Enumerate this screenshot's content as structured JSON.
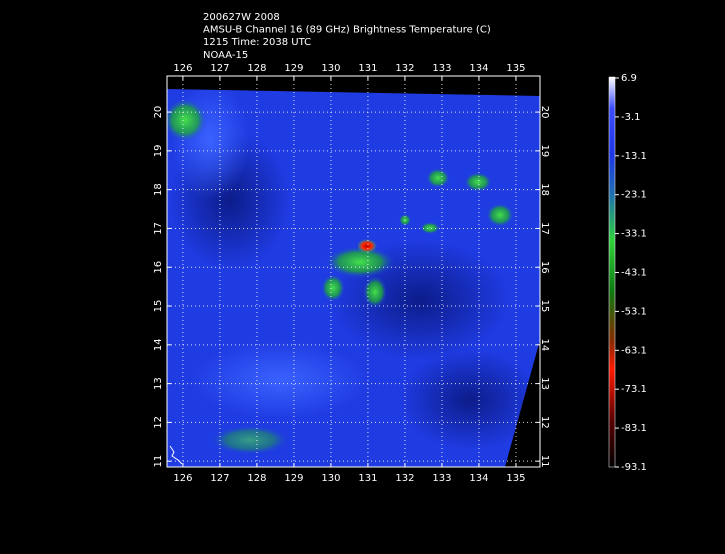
{
  "header": {
    "lines": [
      "200627W 2008",
      "AMSU-B Channel 16 (89 GHz) Brightness Temperature (C)",
      "1215 Time: 2038 UTC",
      "NOAA-15"
    ]
  },
  "map": {
    "lonlim": [
      125.57,
      135.65
    ],
    "latlim": [
      10.85,
      20.93
    ],
    "lon_ticks": [
      126,
      127,
      128,
      129,
      130,
      131,
      132,
      133,
      134,
      135
    ],
    "lat_ticks": [
      20,
      19,
      18,
      17,
      16,
      15,
      14,
      13,
      12,
      11
    ]
  },
  "colorbar": {
    "ticks": [
      6.9,
      -3.1,
      -13.1,
      -23.1,
      -33.1,
      -43.1,
      -53.1,
      -63.1,
      -73.1,
      -83.1,
      -93.1
    ]
  }
}
